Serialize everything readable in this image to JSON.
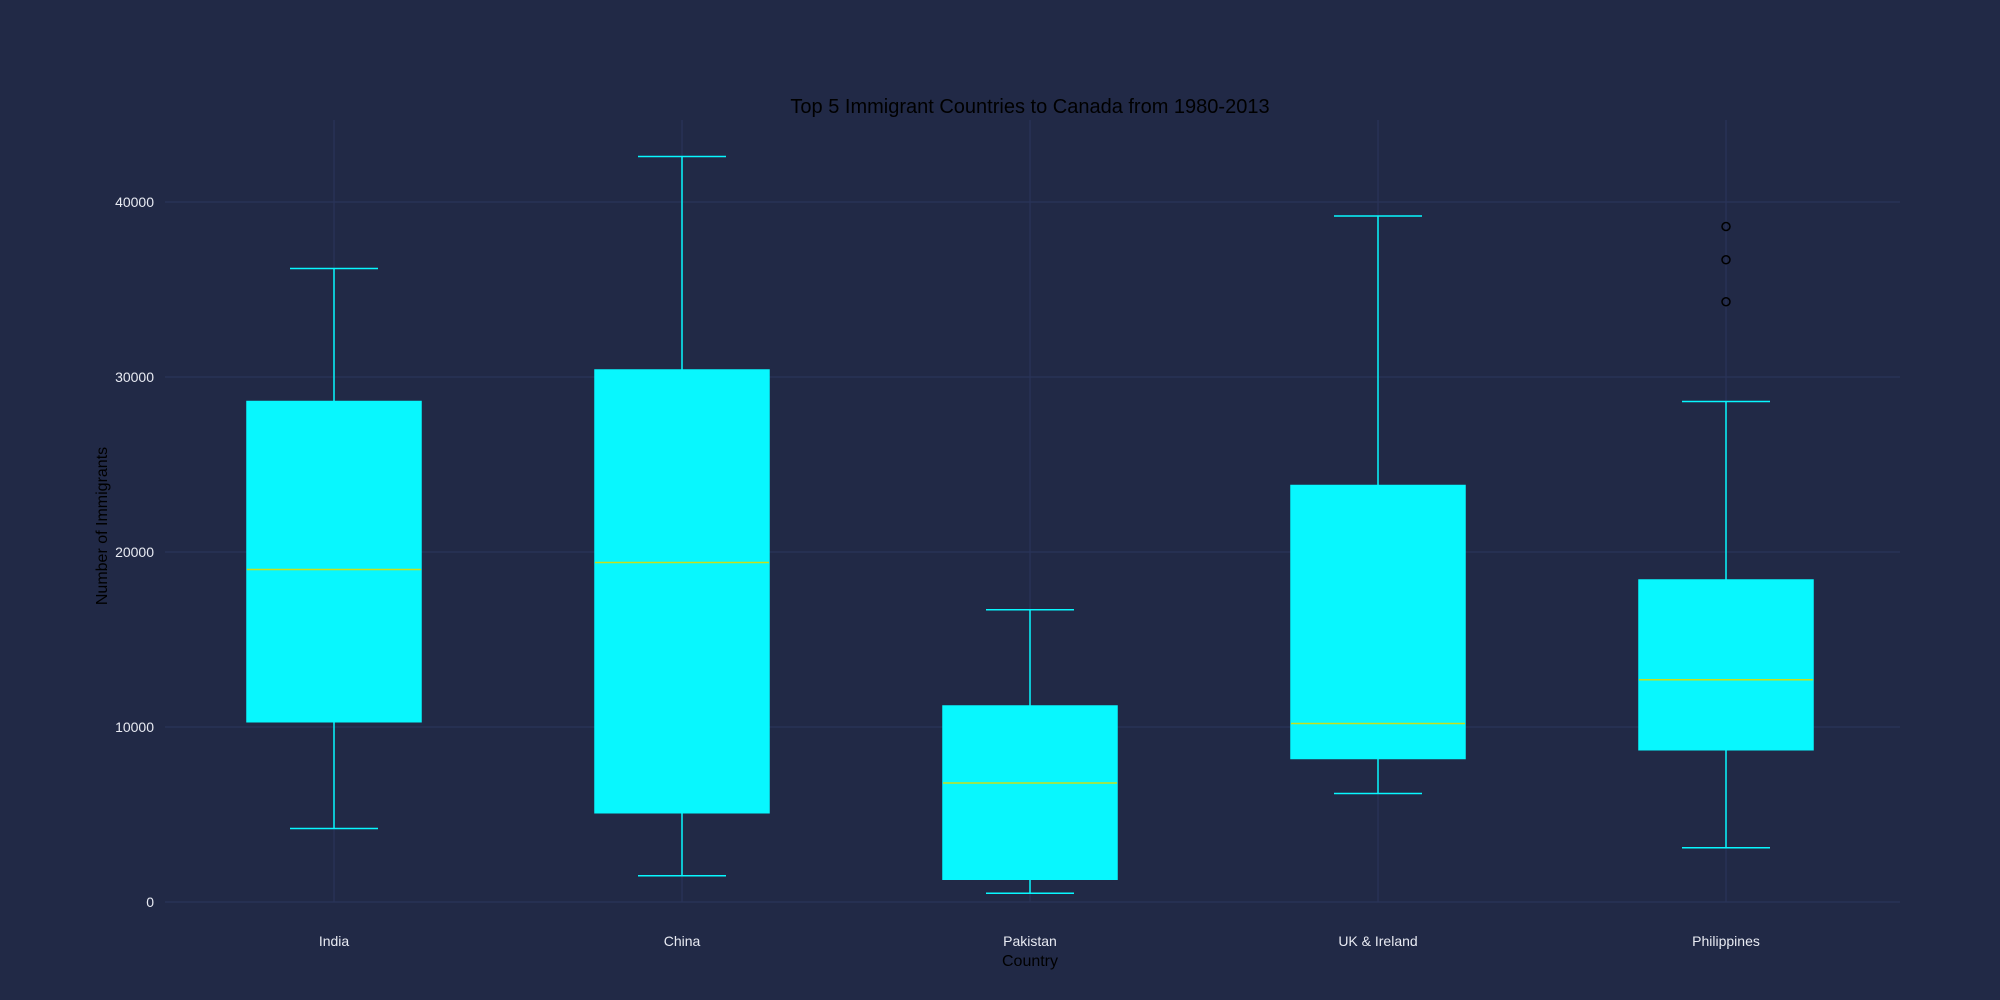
{
  "chart_data": {
    "type": "box",
    "title": "Top 5 Immigrant Countries to Canada from 1980-2013",
    "xlabel": "Country",
    "ylabel": "Number of Immigrants",
    "categories": [
      "India",
      "China",
      "Pakistan",
      "UK & Ireland",
      "Philippines"
    ],
    "yticks": [
      0,
      10000,
      20000,
      30000,
      40000
    ],
    "ylim": [
      -1000,
      45000
    ],
    "grid": true,
    "legend": "none",
    "boxes": [
      {
        "category": "India",
        "whisker_low": 4200,
        "q1": 10300,
        "median": 19000,
        "q3": 28600,
        "whisker_high": 36200,
        "outliers": []
      },
      {
        "category": "China",
        "whisker_low": 1500,
        "q1": 5100,
        "median": 19400,
        "q3": 30400,
        "whisker_high": 42600,
        "outliers": []
      },
      {
        "category": "Pakistan",
        "whisker_low": 500,
        "q1": 1300,
        "median": 6800,
        "q3": 11200,
        "whisker_high": 16700,
        "outliers": []
      },
      {
        "category": "UK & Ireland",
        "whisker_low": 6200,
        "q1": 8200,
        "median": 10200,
        "q3": 23800,
        "whisker_high": 39200,
        "outliers": []
      },
      {
        "category": "Philippines",
        "whisker_low": 3100,
        "q1": 8700,
        "median": 12700,
        "q3": 18400,
        "whisker_high": 28600,
        "outliers": [
          34300,
          36700,
          38600
        ]
      }
    ],
    "colors": {
      "background": "#212946",
      "grid": "#2A3459",
      "box_fill": "#08F7FE",
      "whisker": "#08F7FE",
      "median": "#C8E01A",
      "outlier_edge": "#000000",
      "tick_label": "#E8EAF2",
      "title": "#000000",
      "axis_label": "#000000"
    }
  }
}
